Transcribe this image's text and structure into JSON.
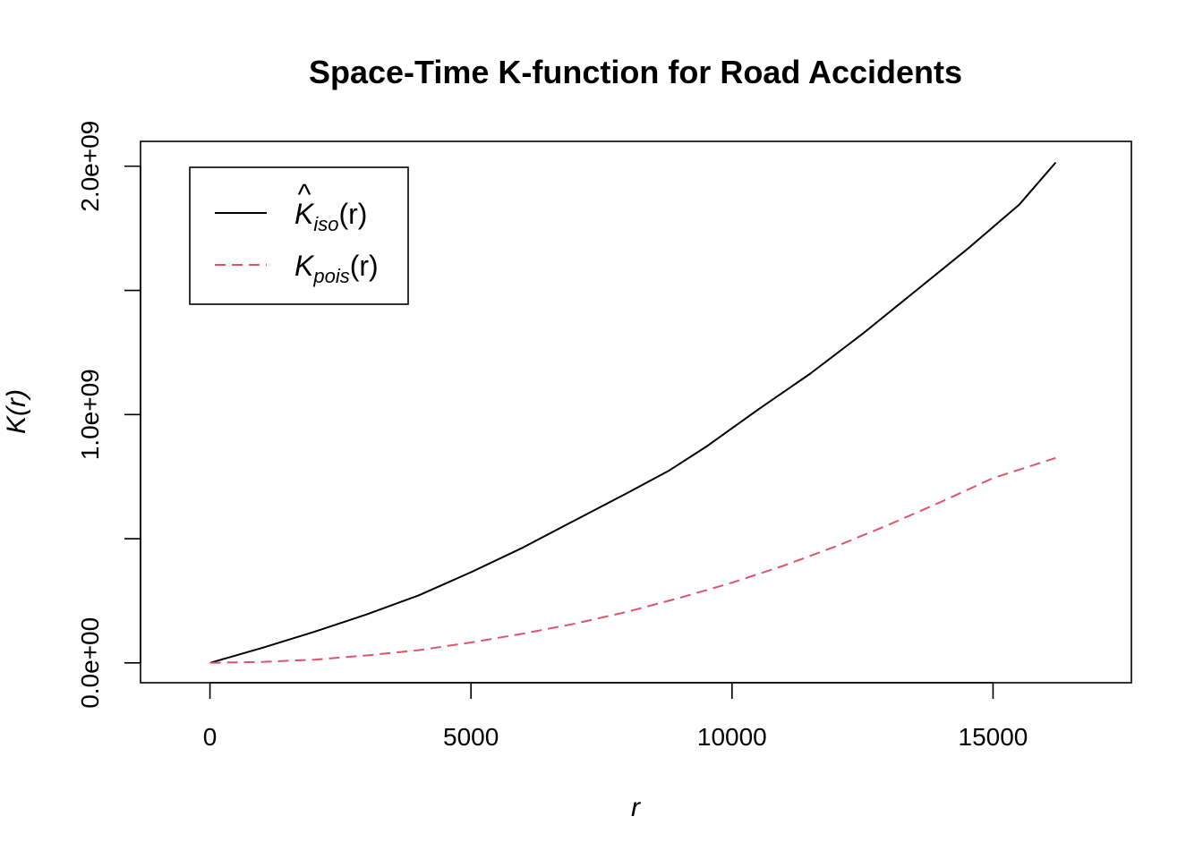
{
  "chart_data": {
    "type": "line",
    "title": "Space-Time K-function for Road Accidents",
    "xlabel": "r",
    "ylabel": "K(r)",
    "xlim": [
      -1330,
      17650
    ],
    "ylim": [
      -80000000,
      2100000000
    ],
    "x_ticks": [
      0,
      5000,
      10000,
      15000
    ],
    "x_tick_labels": [
      "0",
      "5000",
      "10000",
      "15000"
    ],
    "y_ticks": [
      0,
      500000000,
      1000000000,
      1500000000,
      2000000000
    ],
    "y_tick_labels": [
      "0.0e+00",
      "",
      "1.0e+09",
      "",
      "2.0e+09"
    ],
    "grid": false,
    "legend": {
      "position": "top-left"
    },
    "series": [
      {
        "key": "k_iso",
        "legend_main": "K",
        "legend_hat": "^",
        "legend_sub": "iso",
        "legend_arg": "(r)",
        "color": "#000000",
        "dash": "solid",
        "x": [
          0,
          1000,
          2000,
          3000,
          4000,
          5000,
          6000,
          7000,
          8000,
          8800,
          9500,
          10500,
          11500,
          12500,
          13500,
          14500,
          15500,
          16200
        ],
        "y": [
          0,
          60000000,
          125000000,
          195000000,
          272000000,
          365000000,
          465000000,
          575000000,
          685000000,
          775000000,
          870000000,
          1020000000,
          1165000000,
          1325000000,
          1495000000,
          1665000000,
          1845000000,
          2015000000
        ]
      },
      {
        "key": "k_pois",
        "legend_main": "K",
        "legend_hat": "",
        "legend_sub": "pois",
        "legend_arg": "(r)",
        "color": "#DF536B",
        "dash": "dashed",
        "x": [
          0,
          1000,
          2000,
          3000,
          4000,
          5000,
          6000,
          7000,
          8000,
          9000,
          10000,
          11000,
          12000,
          13000,
          14000,
          15000,
          16200
        ],
        "y": [
          0,
          4000000,
          13000000,
          30000000,
          51000000,
          82000000,
          118000000,
          158000000,
          206000000,
          262000000,
          323000000,
          392000000,
          470000000,
          556000000,
          648000000,
          744000000,
          825000000
        ]
      }
    ]
  }
}
